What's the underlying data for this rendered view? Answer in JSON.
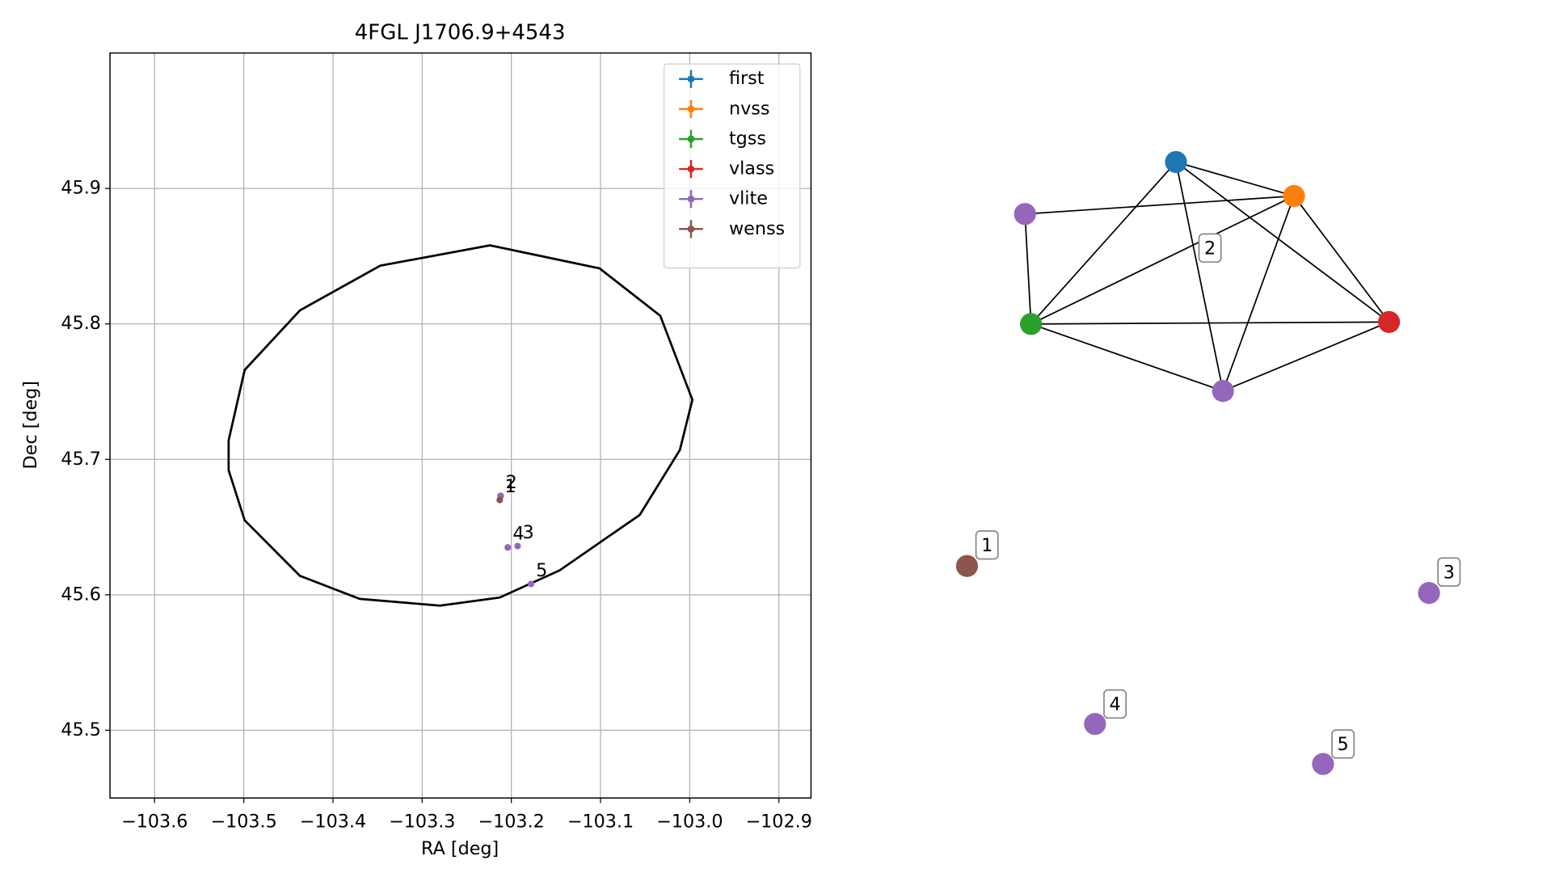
{
  "chart_data": [
    {
      "type": "scatter",
      "title": "4FGL J1706.9+4543",
      "x_label": "RA [deg]",
      "y_label": "Dec [deg]",
      "xlim": [
        -103.65,
        -102.864
      ],
      "ylim": [
        45.45,
        46.0
      ],
      "xticks": [
        {
          "value": -103.6,
          "label": "−103.6"
        },
        {
          "value": -103.5,
          "label": "−103.5"
        },
        {
          "value": -103.4,
          "label": "−103.4"
        },
        {
          "value": -103.3,
          "label": "−103.3"
        },
        {
          "value": -103.2,
          "label": "−103.2"
        },
        {
          "value": -103.1,
          "label": "−103.1"
        },
        {
          "value": -103.0,
          "label": "−103.0"
        },
        {
          "value": -102.9,
          "label": "−102.9"
        }
      ],
      "yticks": [
        45.5,
        45.6,
        45.7,
        45.8,
        45.9
      ],
      "grid": true,
      "legend": "upper right",
      "ellipse": {
        "color": "#000000",
        "x": [
          -103.517,
          -103.499,
          -103.437,
          -103.347,
          -103.224,
          -103.101,
          -103.033,
          -102.997,
          -103.011,
          -103.056,
          -103.146,
          -103.213,
          -103.28,
          -103.37,
          -103.437,
          -103.499,
          -103.517,
          -103.517
        ],
        "y": [
          45.714,
          45.766,
          45.81,
          45.843,
          45.858,
          45.841,
          45.806,
          45.744,
          45.707,
          45.659,
          45.618,
          45.598,
          45.592,
          45.597,
          45.614,
          45.655,
          45.692,
          45.714
        ]
      },
      "series": [
        {
          "name": "first",
          "color": "#1f77b4",
          "x": [
            -103.212
          ],
          "y": [
            45.673
          ]
        },
        {
          "name": "nvss",
          "color": "#ff7f0e",
          "x": [
            -103.212
          ],
          "y": [
            45.673
          ]
        },
        {
          "name": "tgss",
          "color": "#2ca02c",
          "x": [
            -103.212
          ],
          "y": [
            45.673
          ]
        },
        {
          "name": "vlass",
          "color": "#d62728",
          "x": [
            -103.212
          ],
          "y": [
            45.673
          ]
        },
        {
          "name": "vlite",
          "color": "#9467bd",
          "x": [
            -103.212,
            -103.193,
            -103.204,
            -103.178
          ],
          "y": [
            45.673,
            45.636,
            45.635,
            45.608
          ]
        },
        {
          "name": "wenss",
          "color": "#8c564b",
          "x": [
            -103.213
          ],
          "y": [
            45.67
          ]
        }
      ],
      "annotations": [
        {
          "text": "1",
          "x": -103.213,
          "y": 45.67
        },
        {
          "text": "2",
          "x": -103.212,
          "y": 45.673
        },
        {
          "text": "3",
          "x": -103.193,
          "y": 45.636
        },
        {
          "text": "4",
          "x": -103.204,
          "y": 45.635
        },
        {
          "text": "5",
          "x": -103.178,
          "y": 45.608
        }
      ]
    },
    {
      "type": "network",
      "nodes": [
        {
          "color": "#1f77b4"
        },
        {
          "color": "#ff7f0e"
        },
        {
          "color": "#9467bd"
        },
        {
          "color": "#2ca02c"
        },
        {
          "color": "#d62728"
        },
        {
          "color": "#9467bd"
        },
        {
          "color": "#8c564b"
        },
        {
          "color": "#9467bd"
        },
        {
          "color": "#9467bd"
        },
        {
          "color": "#9467bd"
        }
      ],
      "edges": [
        [
          0,
          1
        ],
        [
          0,
          3
        ],
        [
          0,
          4
        ],
        [
          0,
          5
        ],
        [
          1,
          2
        ],
        [
          1,
          3
        ],
        [
          1,
          4
        ],
        [
          1,
          5
        ],
        [
          2,
          3
        ],
        [
          3,
          4
        ],
        [
          3,
          5
        ],
        [
          4,
          5
        ]
      ],
      "groups": [
        {
          "label": "1"
        },
        {
          "label": "2"
        },
        {
          "label": "3"
        },
        {
          "label": "4"
        },
        {
          "label": "5"
        }
      ]
    }
  ]
}
